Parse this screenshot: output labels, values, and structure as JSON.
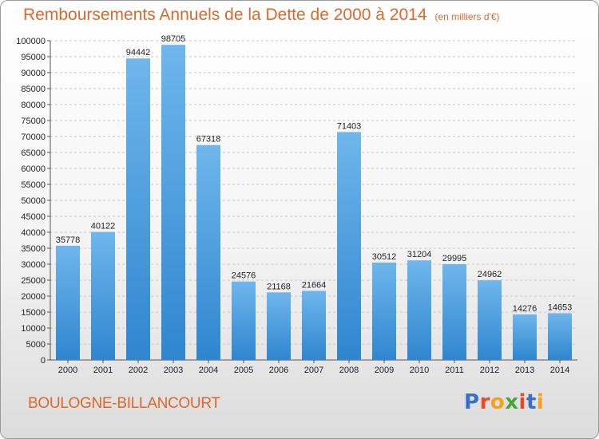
{
  "header": {
    "title": "Remboursements Annuels de la Dette de 2000 à 2014",
    "subtitle": "(en milliers d'€)"
  },
  "footer": {
    "city": "BOULOGNE-BILLANCOURT",
    "brand": {
      "letters": [
        "P",
        "r",
        "o",
        "x",
        "i",
        "t",
        "i"
      ],
      "colors": [
        "#3a6fc9",
        "#e94a2a",
        "#f2a21b",
        "#4aa536",
        "#e94a2a",
        "#3a6fc9",
        "#f2a21b"
      ]
    }
  },
  "colors": {
    "bar_light": "#6fb6ec",
    "bar_dark": "#2f86cf",
    "title": "#d86a2e",
    "grid": "#c8c8c8"
  },
  "chart_data": {
    "type": "bar",
    "title": "Remboursements Annuels de la Dette de 2000 à 2014",
    "subtitle": "(en milliers d'€)",
    "xlabel": "",
    "ylabel": "",
    "categories": [
      "2000",
      "2001",
      "2002",
      "2003",
      "2004",
      "2005",
      "2006",
      "2007",
      "2008",
      "2009",
      "2010",
      "2011",
      "2012",
      "2013",
      "2014"
    ],
    "values": [
      35778,
      40122,
      94442,
      98705,
      67318,
      24576,
      21168,
      21664,
      71403,
      30512,
      31204,
      29995,
      24962,
      14276,
      14653
    ],
    "ylim": [
      0,
      100000
    ],
    "yticks": [
      0,
      5000,
      10000,
      15000,
      20000,
      25000,
      30000,
      35000,
      40000,
      45000,
      50000,
      55000,
      60000,
      65000,
      70000,
      75000,
      80000,
      85000,
      90000,
      95000,
      100000
    ],
    "grid": "horizontal dashed",
    "legend": "none"
  }
}
